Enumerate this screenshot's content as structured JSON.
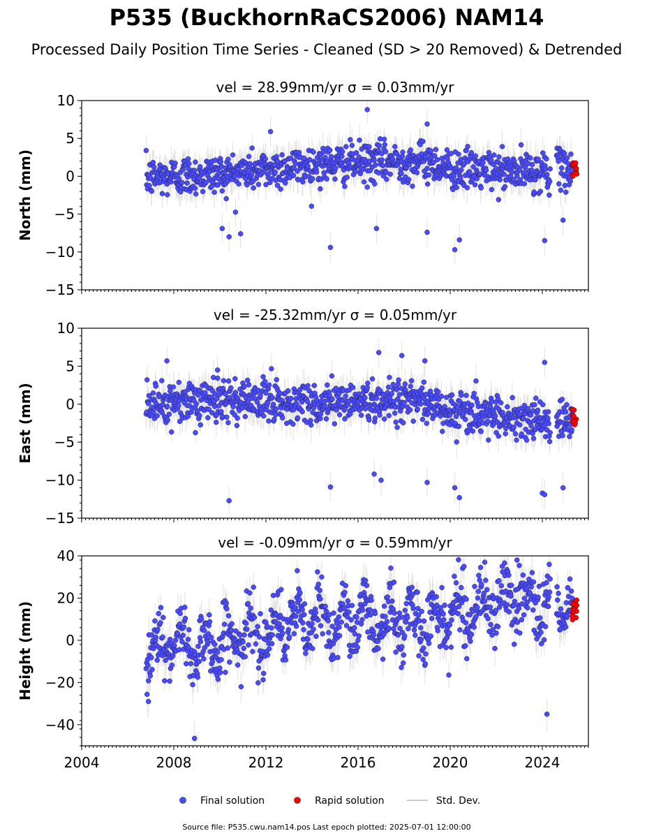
{
  "title": "P535 (BuckhornRaCS2006) NAM14",
  "subtitle": "Processed Daily Position Time Series - Cleaned (SD > 20 Removed) & Detrended",
  "footer": "Source file: P535.cwu.nam14.pos  Last epoch plotted: 2025-07-01 12:00:00",
  "legend": {
    "final": "Final solution",
    "rapid": "Rapid solution",
    "std": "Std. Dev."
  },
  "colors": {
    "final": "#4a4aff",
    "rapid": "#ff0000",
    "std": "#bbbbbb",
    "axis": "#000000"
  },
  "chart_data": [
    {
      "type": "scatter",
      "title": "vel = 28.99mm/yr   σ = 0.03mm/yr",
      "ylabel": "North (mm)",
      "xlim": [
        2004,
        2026
      ],
      "ylim": [
        -15,
        10
      ],
      "yticks": [
        -15,
        -10,
        -5,
        0,
        5,
        10
      ],
      "ytick_labels": [
        "−15",
        "−10",
        "−5",
        "0",
        "5",
        "10"
      ],
      "series": [
        {
          "name": "Final solution",
          "x_range": [
            2006.8,
            2025.3
          ],
          "trend": [
            [
              2006.8,
              -0.2
            ],
            [
              2010,
              0.3
            ],
            [
              2014,
              1.5
            ],
            [
              2016.5,
              1.8
            ],
            [
              2019,
              2.0
            ],
            [
              2020,
              1.0
            ],
            [
              2023,
              0.5
            ],
            [
              2025.3,
              1.0
            ]
          ],
          "scatter_sd": 1.3
        },
        {
          "name": "Rapid solution",
          "x_range": [
            2025.3,
            2025.5
          ],
          "y_range": [
            0,
            1.8
          ]
        }
      ],
      "outliers": [
        [
          2010.1,
          -6.9
        ],
        [
          2010.4,
          -8.0
        ],
        [
          2010.9,
          -7.6
        ],
        [
          2014.8,
          -9.4
        ],
        [
          2016.4,
          8.8
        ],
        [
          2016.8,
          -6.9
        ],
        [
          2019.0,
          -7.4
        ],
        [
          2019.0,
          6.9
        ],
        [
          2020.2,
          -9.7
        ],
        [
          2020.4,
          -8.4
        ],
        [
          2024.1,
          -8.5
        ],
        [
          2024.9,
          -5.8
        ],
        [
          2012.2,
          5.9
        ]
      ]
    },
    {
      "type": "scatter",
      "title": "vel = -25.32mm/yr   σ = 0.05mm/yr",
      "ylabel": "East (mm)",
      "xlim": [
        2004,
        2026
      ],
      "ylim": [
        -15,
        10
      ],
      "yticks": [
        -15,
        -10,
        -5,
        0,
        5,
        10
      ],
      "ytick_labels": [
        "−15",
        "−10",
        "−5",
        "0",
        "5",
        "10"
      ],
      "series": [
        {
          "name": "Final solution",
          "x_range": [
            2006.8,
            2025.3
          ],
          "trend": [
            [
              2006.8,
              0.0
            ],
            [
              2010,
              0.5
            ],
            [
              2014,
              0.2
            ],
            [
              2017,
              0.5
            ],
            [
              2019,
              0.5
            ],
            [
              2020,
              -1.0
            ],
            [
              2022,
              -1.5
            ],
            [
              2025.3,
              -2.5
            ]
          ],
          "scatter_sd": 1.4
        },
        {
          "name": "Rapid solution",
          "x_range": [
            2025.3,
            2025.5
          ],
          "y_range": [
            -2.7,
            -0.5
          ]
        }
      ],
      "outliers": [
        [
          2010.4,
          -12.7
        ],
        [
          2014.8,
          -10.9
        ],
        [
          2016.7,
          -9.2
        ],
        [
          2017.0,
          -10.0
        ],
        [
          2019.0,
          -10.3
        ],
        [
          2020.2,
          -11.0
        ],
        [
          2020.4,
          -12.3
        ],
        [
          2024.0,
          -11.7
        ],
        [
          2024.1,
          -11.9
        ],
        [
          2024.9,
          -11.0
        ],
        [
          2024.1,
          5.5
        ],
        [
          2017.9,
          6.4
        ],
        [
          2016.9,
          6.8
        ],
        [
          2007.7,
          5.7
        ],
        [
          2018.9,
          5.7
        ],
        [
          2009.9,
          4.5
        ]
      ]
    },
    {
      "type": "scatter",
      "title": "vel = -0.09mm/yr   σ = 0.59mm/yr",
      "ylabel": "Height (mm)",
      "xlabel": "",
      "xlim": [
        2004,
        2026
      ],
      "ylim": [
        -50,
        40
      ],
      "yticks": [
        -40,
        -20,
        0,
        20,
        40
      ],
      "ytick_labels": [
        "−40",
        "−20",
        "0",
        "20",
        "40"
      ],
      "xticks": [
        2004,
        2008,
        2012,
        2016,
        2020,
        2024
      ],
      "series": [
        {
          "name": "Final solution",
          "x_range": [
            2006.8,
            2025.3
          ],
          "trend": [
            [
              2006.8,
              -3
            ],
            [
              2010,
              -2
            ],
            [
              2013,
              8
            ],
            [
              2016,
              10
            ],
            [
              2019,
              8
            ],
            [
              2021,
              15
            ],
            [
              2023,
              20
            ],
            [
              2025.3,
              15
            ]
          ],
          "scatter_sd": 7,
          "seasonal_amp": 8
        },
        {
          "name": "Rapid solution",
          "x_range": [
            2025.3,
            2025.5
          ],
          "y_range": [
            7,
            20
          ]
        }
      ],
      "outliers": [
        [
          2008.9,
          -46.5
        ],
        [
          2024.2,
          -35
        ],
        [
          2006.9,
          -29
        ],
        [
          2020.6,
          35
        ],
        [
          2021.5,
          37
        ],
        [
          2022.9,
          38
        ]
      ]
    }
  ]
}
